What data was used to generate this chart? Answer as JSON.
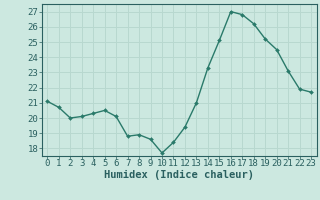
{
  "x": [
    0,
    1,
    2,
    3,
    4,
    5,
    6,
    7,
    8,
    9,
    10,
    11,
    12,
    13,
    14,
    15,
    16,
    17,
    18,
    19,
    20,
    21,
    22,
    23
  ],
  "y": [
    21.1,
    20.7,
    20.0,
    20.1,
    20.3,
    20.5,
    20.1,
    18.8,
    18.9,
    18.6,
    17.7,
    18.4,
    19.4,
    21.0,
    23.3,
    25.1,
    27.0,
    26.8,
    26.2,
    25.2,
    24.5,
    23.1,
    21.9,
    21.7
  ],
  "xlabel": "Humidex (Indice chaleur)",
  "bg_color": "#cce8e0",
  "grid_color": "#b8d8cf",
  "line_color": "#2a7a6a",
  "marker_color": "#2a7a6a",
  "axis_color": "#2a6060",
  "ylim": [
    17.5,
    27.5
  ],
  "xlim": [
    -0.5,
    23.5
  ],
  "yticks": [
    18,
    19,
    20,
    21,
    22,
    23,
    24,
    25,
    26,
    27
  ],
  "xticks": [
    0,
    1,
    2,
    3,
    4,
    5,
    6,
    7,
    8,
    9,
    10,
    11,
    12,
    13,
    14,
    15,
    16,
    17,
    18,
    19,
    20,
    21,
    22,
    23
  ],
  "tick_fontsize": 6.5,
  "xlabel_fontsize": 7.5
}
